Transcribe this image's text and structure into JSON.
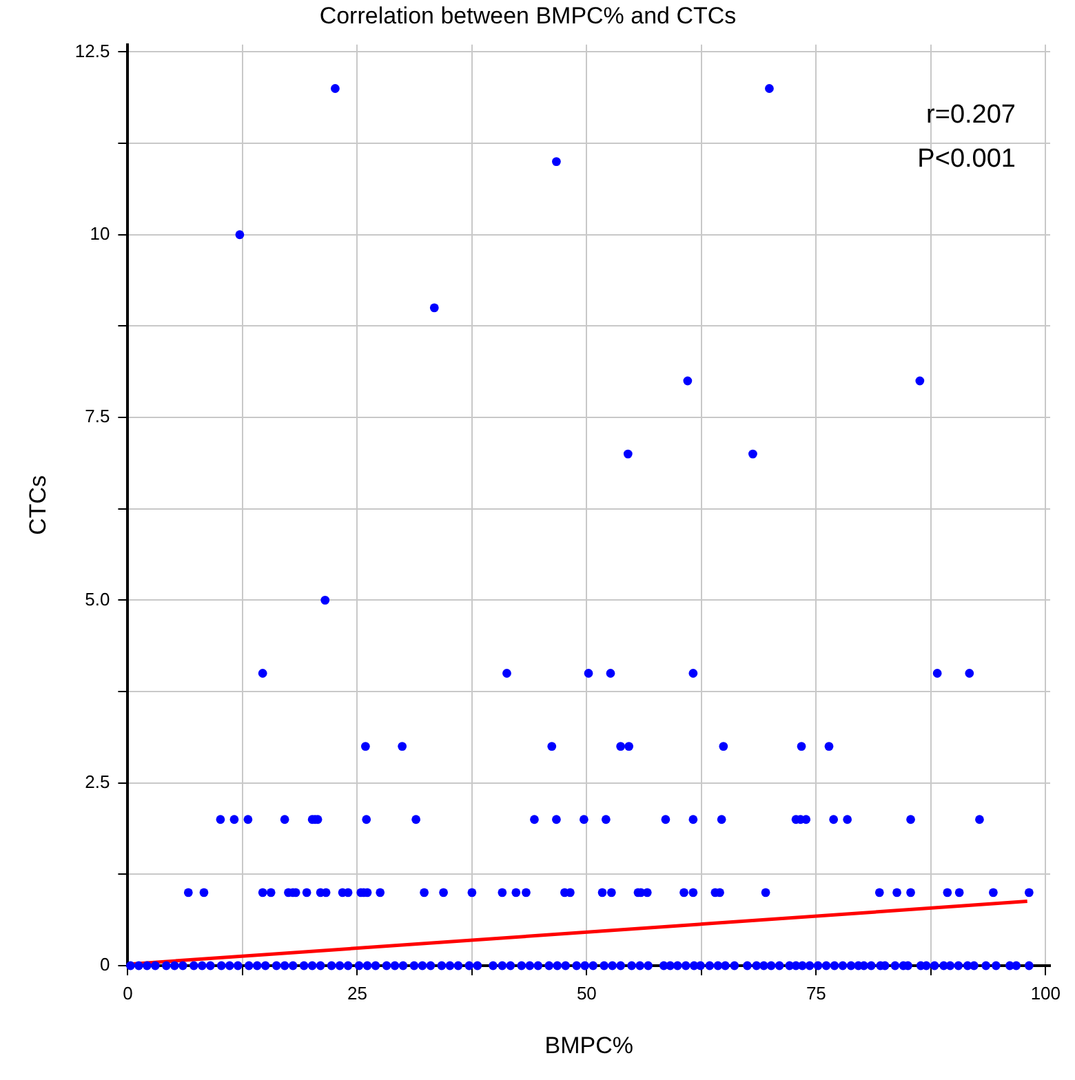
{
  "chart_data": {
    "type": "scatter",
    "title": "Correlation between BMPC% and CTCs",
    "xlabel": "BMPC%",
    "ylabel": "CTCs",
    "annotations": [
      "r=0.207",
      "P<0.001"
    ],
    "xlim": [
      0,
      100.5
    ],
    "ylim": [
      0,
      12.6
    ],
    "xticks": [
      0,
      {
        "value": 12.5,
        "label": null
      },
      25,
      {
        "value": 37.5,
        "label": null
      },
      50,
      {
        "value": 62.5,
        "label": null
      },
      75,
      {
        "value": 87.5,
        "label": null
      },
      100
    ],
    "yticks": [
      0,
      {
        "value": 1.25,
        "label": null
      },
      2.5,
      {
        "value": 3.75,
        "label": null
      },
      {
        "value": 5,
        "label": "5.0"
      },
      {
        "value": 6.25,
        "label": null
      },
      7.5,
      {
        "value": 8.75,
        "label": null
      },
      10,
      {
        "value": 11.25,
        "label": null
      },
      12.5
    ],
    "grid": true,
    "legend": false,
    "marker": "circle",
    "series": [
      {
        "color": "#0000ff",
        "x": [
          22.6,
          69.9,
          46.7,
          12.2,
          33.4,
          61.0,
          86.3,
          54.5,
          68.1,
          21.5,
          14.7,
          41.3,
          50.2,
          52.6,
          61.6,
          88.2,
          91.7,
          25.9,
          29.9,
          46.2,
          53.7,
          54.6,
          64.9,
          73.4,
          76.4,
          10.1,
          11.6,
          13.1,
          17.1,
          20.1,
          20.4,
          20.7,
          26.0,
          31.4,
          44.3,
          46.7,
          49.7,
          52.1,
          58.6,
          61.6,
          64.7,
          72.8,
          73.3,
          73.9,
          76.9,
          78.4,
          85.3,
          92.8,
          6.6,
          8.3,
          14.7,
          15.6,
          17.5,
          18.0,
          18.3,
          19.5,
          21.0,
          21.6,
          23.4,
          24.0,
          25.4,
          25.7,
          26.1,
          27.5,
          32.3,
          34.4,
          37.5,
          40.8,
          42.3,
          43.4,
          47.6,
          48.2,
          51.7,
          52.7,
          55.6,
          55.9,
          56.6,
          60.6,
          61.6,
          64.0,
          64.5,
          69.5,
          81.9,
          83.8,
          85.3,
          89.3,
          90.6,
          94.3,
          98.2,
          0.3,
          1.2,
          2.1,
          3.0,
          4.2,
          5.1,
          6.0,
          7.2,
          8.1,
          9.0,
          10.2,
          11.1,
          12.0,
          13.2,
          14.1,
          15.0,
          16.2,
          17.1,
          18.0,
          19.2,
          20.1,
          21.0,
          22.2,
          23.1,
          24.0,
          25.2,
          26.1,
          27.0,
          28.2,
          29.1,
          30.0,
          31.2,
          32.1,
          33.0,
          34.2,
          35.1,
          36.0,
          37.2,
          38.1,
          39.8,
          40.8,
          41.7,
          42.9,
          43.8,
          44.7,
          45.9,
          46.8,
          47.7,
          48.9,
          49.8,
          50.7,
          51.9,
          52.8,
          53.7,
          54.9,
          55.8,
          56.7,
          58.4,
          59.1,
          59.9,
          60.8,
          61.7,
          62.4,
          63.4,
          64.3,
          65.1,
          66.1,
          67.5,
          68.5,
          69.3,
          70.1,
          71.0,
          72.1,
          72.8,
          73.5,
          74.3,
          75.2,
          76.1,
          77.0,
          77.9,
          78.8,
          79.6,
          80.2,
          81.0,
          82.0,
          82.5,
          83.6,
          84.5,
          85.0,
          86.4,
          87.0,
          87.9,
          88.9,
          89.6,
          90.5,
          91.5,
          92.2,
          93.5,
          94.6,
          96.1,
          96.8,
          98.2
        ],
        "values": [
          12,
          12,
          11,
          10,
          9,
          8,
          8,
          7,
          7,
          5,
          4,
          4,
          4,
          4,
          4,
          4,
          4,
          3,
          3,
          3,
          3,
          3,
          3,
          3,
          3,
          2,
          2,
          2,
          2,
          2,
          2,
          2,
          2,
          2,
          2,
          2,
          2,
          2,
          2,
          2,
          2,
          2,
          2,
          2,
          2,
          2,
          2,
          2,
          1,
          1,
          1,
          1,
          1,
          1,
          1,
          1,
          1,
          1,
          1,
          1,
          1,
          1,
          1,
          1,
          1,
          1,
          1,
          1,
          1,
          1,
          1,
          1,
          1,
          1,
          1,
          1,
          1,
          1,
          1,
          1,
          1,
          1,
          1,
          1,
          1,
          1,
          1,
          1,
          1,
          0,
          0,
          0,
          0,
          0,
          0,
          0,
          0,
          0,
          0,
          0,
          0,
          0,
          0,
          0,
          0,
          0,
          0,
          0,
          0,
          0,
          0,
          0,
          0,
          0,
          0,
          0,
          0,
          0,
          0,
          0,
          0,
          0,
          0,
          0,
          0,
          0,
          0,
          0,
          0,
          0,
          0,
          0,
          0,
          0,
          0,
          0,
          0,
          0,
          0,
          0,
          0,
          0,
          0,
          0,
          0,
          0,
          0,
          0,
          0,
          0,
          0,
          0,
          0,
          0,
          0,
          0,
          0,
          0,
          0,
          0,
          0,
          0,
          0,
          0,
          0,
          0,
          0,
          0,
          0,
          0,
          0,
          0,
          0,
          0,
          0,
          0,
          0,
          0,
          0,
          0,
          0,
          0,
          0,
          0,
          0,
          0,
          0,
          0,
          0,
          0,
          0
        ]
      },
      {
        "type": "line",
        "color": "#ff0000",
        "marker": "none",
        "x": [
          0,
          98
        ],
        "values": [
          0.02,
          0.88
        ]
      }
    ]
  }
}
